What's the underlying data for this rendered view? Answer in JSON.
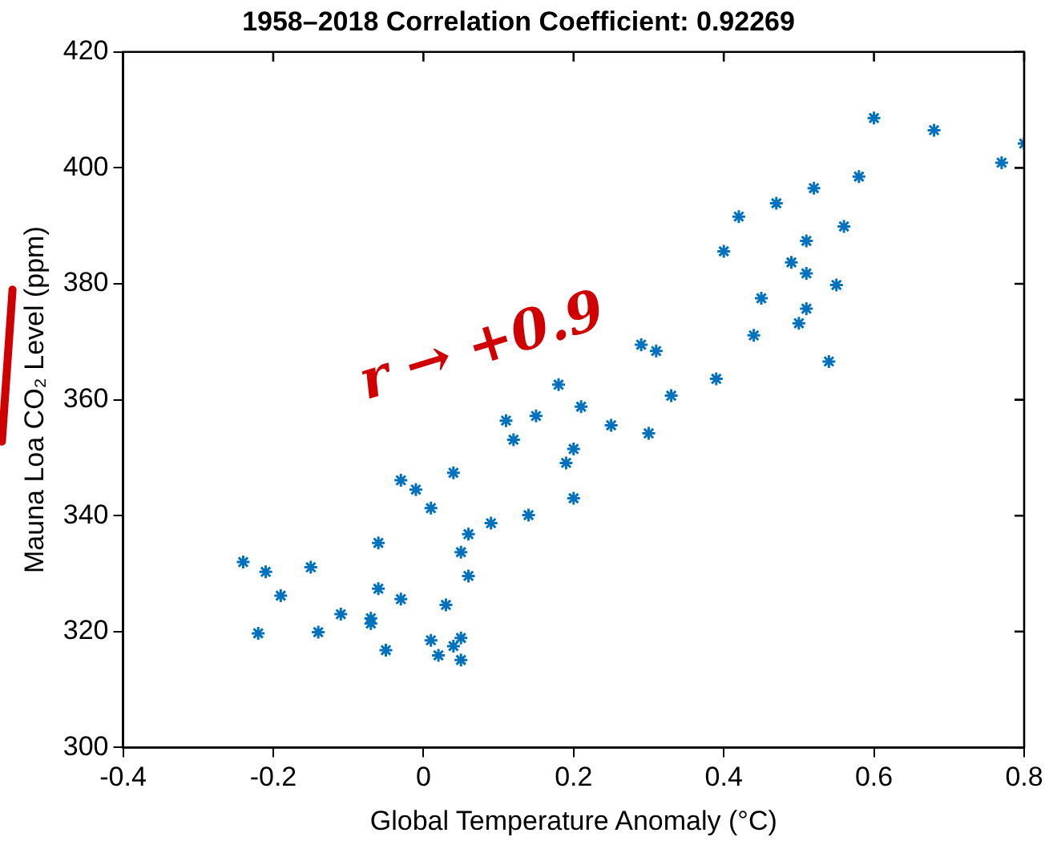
{
  "chart_data": {
    "type": "scatter",
    "title": "1958–2018 Correlation Coefficient: 0.92269",
    "xlabel": "Global Temperature Anomaly (°C)",
    "ylabel": "Mauna Loa CO₂ Level (ppm)",
    "annotations": [
      "r → +0.9"
    ],
    "xlim": [
      -0.4,
      0.8
    ],
    "xticks": [
      -0.4,
      -0.2,
      0,
      0.2,
      0.4,
      0.6,
      0.8
    ],
    "ylim": [
      300,
      420
    ],
    "yticks": [
      300,
      320,
      340,
      360,
      380,
      400,
      420
    ],
    "grid": false,
    "legend": false,
    "marker": "cross",
    "series": [
      {
        "color": "#0072bd",
        "x": [
          -0.24,
          -0.21,
          -0.19,
          -0.22,
          -0.15,
          -0.14,
          -0.11,
          -0.07,
          -0.07,
          -0.06,
          -0.06,
          -0.05,
          -0.03,
          -0.03,
          -0.01,
          0.01,
          0.03,
          0.01,
          0.02,
          0.04,
          0.05,
          0.05,
          0.04,
          0.05,
          0.06,
          0.06,
          0.09,
          0.14,
          0.11,
          0.12,
          0.15,
          0.18,
          0.21,
          0.2,
          0.19,
          0.2,
          0.25,
          0.3,
          0.29,
          0.31,
          0.33,
          0.39,
          0.4,
          0.42,
          0.44,
          0.45,
          0.47,
          0.49,
          0.5,
          0.51,
          0.51,
          0.51,
          0.52,
          0.54,
          0.55,
          0.56,
          0.58,
          0.6,
          0.68,
          0.77,
          0.8
        ],
        "values": [
          332,
          330.3,
          326.2,
          319.7,
          331.1,
          319.9,
          323,
          322.3,
          321.4,
          327.4,
          335.3,
          316.8,
          325.6,
          346.1,
          344.5,
          341.3,
          324.6,
          318.5,
          315.9,
          317.5,
          318.9,
          315.1,
          347.4,
          333.7,
          336.8,
          329.6,
          338.7,
          340.1,
          356.4,
          353.1,
          357.2,
          362.6,
          358.8,
          351.5,
          349.1,
          343,
          355.6,
          354.2,
          369.5,
          368.4,
          360.7,
          363.6,
          385.6,
          391.6,
          371.1,
          377.5,
          393.9,
          383.7,
          373.2,
          375.7,
          381.8,
          387.4,
          396.5,
          366.6,
          379.8,
          389.9,
          398.5,
          408.6,
          406.5,
          400.9,
          404.2
        ]
      }
    ]
  }
}
